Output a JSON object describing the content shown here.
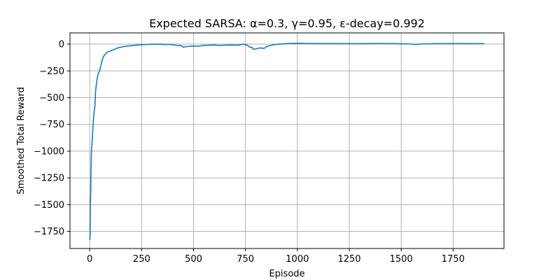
{
  "chart_data": {
    "type": "line",
    "title": "Expected SARSA: α=0.3, γ=0.95, ε-decay=0.992",
    "xlabel": "Episode",
    "ylabel": "Smoothed Total Reward",
    "xlim": [
      -95,
      1995
    ],
    "ylim": [
      -1910,
      105
    ],
    "x_ticks": [
      0,
      250,
      500,
      750,
      1000,
      1250,
      1500,
      1750
    ],
    "x_tick_labels": [
      "0",
      "250",
      "500",
      "750",
      "1000",
      "1250",
      "1500",
      "1750"
    ],
    "y_ticks": [
      0,
      -250,
      -500,
      -750,
      -1000,
      -1250,
      -1500,
      -1750
    ],
    "y_tick_labels": [
      "0",
      "−250",
      "−500",
      "−750",
      "−1000",
      "−1250",
      "−1500",
      "−1750"
    ],
    "grid": true,
    "line_color": "#1f77b4",
    "series": [
      {
        "x": [
          0,
          2,
          3,
          5,
          6,
          8,
          10,
          12,
          15,
          18,
          22,
          25,
          28,
          30,
          35,
          40,
          45,
          50,
          55,
          60,
          65,
          70,
          75,
          80,
          90,
          100,
          110,
          120,
          130,
          140,
          160,
          180,
          200,
          220,
          250,
          280,
          300,
          320,
          350,
          360,
          375,
          400,
          420,
          440,
          450,
          460,
          480,
          500,
          520,
          540,
          550,
          580,
          600,
          620,
          650,
          680,
          700,
          720,
          740,
          750,
          760,
          770,
          780,
          790,
          800,
          820,
          840,
          850,
          860,
          880,
          900,
          950,
          1000,
          1050,
          1100,
          1200,
          1300,
          1350,
          1400,
          1450,
          1500,
          1550,
          1560,
          1600,
          1650,
          1660,
          1700,
          1750,
          1800,
          1850,
          1900
        ],
        "y": [
          -1830,
          -1790,
          -1500,
          -1350,
          -1200,
          -1010,
          -950,
          -900,
          -790,
          -700,
          -620,
          -580,
          -440,
          -410,
          -330,
          -280,
          -260,
          -230,
          -190,
          -150,
          -120,
          -105,
          -95,
          -80,
          -70,
          -65,
          -55,
          -48,
          -40,
          -32,
          -25,
          -18,
          -15,
          -10,
          -5,
          -3,
          0,
          -1,
          0,
          -5,
          -2,
          -5,
          -12,
          -14,
          -28,
          -25,
          -20,
          -18,
          -20,
          -15,
          -12,
          -10,
          -8,
          -12,
          -10,
          -8,
          -10,
          -8,
          0,
          -8,
          -10,
          -28,
          -30,
          -48,
          -45,
          -35,
          -40,
          -25,
          -18,
          -8,
          -2,
          5,
          8,
          6,
          5,
          5,
          4,
          5,
          6,
          5,
          3,
          2,
          -4,
          2,
          3,
          5,
          4,
          5,
          5,
          4,
          5
        ]
      }
    ]
  }
}
